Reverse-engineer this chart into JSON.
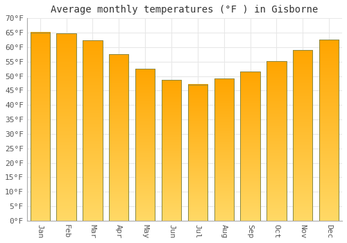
{
  "months": [
    "Jan",
    "Feb",
    "Mar",
    "Apr",
    "May",
    "Jun",
    "Jul",
    "Aug",
    "Sep",
    "Oct",
    "Nov",
    "Dec"
  ],
  "values": [
    65.1,
    64.8,
    62.4,
    57.6,
    52.5,
    48.7,
    47.1,
    49.1,
    51.6,
    55.2,
    59.0,
    62.6
  ],
  "bar_color_top": "#FFA500",
  "bar_color_bottom": "#FFD966",
  "bar_edge_color": "#888844",
  "title": "Average monthly temperatures (°F ) in Gisborne",
  "ylim": [
    0,
    70
  ],
  "yticks": [
    0,
    5,
    10,
    15,
    20,
    25,
    30,
    35,
    40,
    45,
    50,
    55,
    60,
    65,
    70
  ],
  "ytick_labels": [
    "0°F",
    "5°F",
    "10°F",
    "15°F",
    "20°F",
    "25°F",
    "30°F",
    "35°F",
    "40°F",
    "45°F",
    "50°F",
    "55°F",
    "60°F",
    "65°F",
    "70°F"
  ],
  "background_color": "#ffffff",
  "grid_color": "#e8e8e8",
  "title_fontsize": 10,
  "tick_fontsize": 8,
  "font_family": "monospace",
  "bar_width": 0.75
}
